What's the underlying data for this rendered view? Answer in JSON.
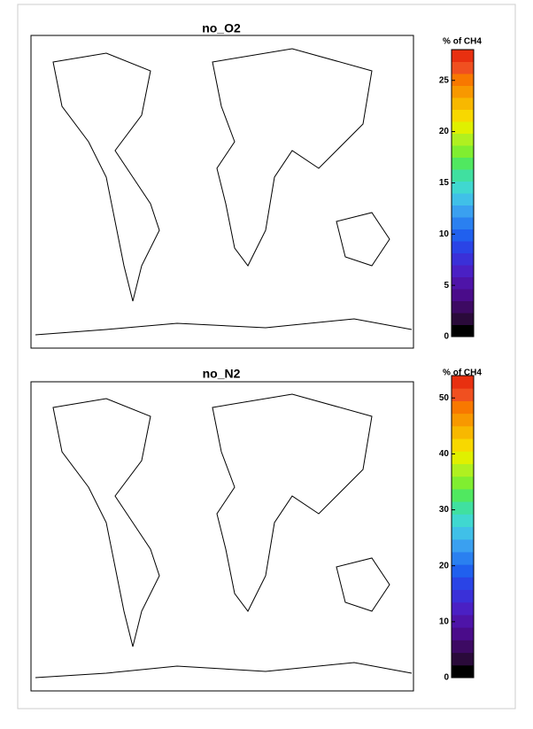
{
  "panels": [
    {
      "title": "no_O2",
      "colorbar_label": "% of CH4",
      "clim": [
        0,
        28
      ],
      "ticks": [
        0,
        5,
        10,
        15,
        20,
        25
      ]
    },
    {
      "title": "no_N2",
      "colorbar_label": "% of CH4",
      "clim": [
        0,
        54
      ],
      "ticks": [
        0,
        10,
        20,
        30,
        40,
        50
      ]
    }
  ],
  "colormap": [
    "#000000",
    "#2a0a3a",
    "#3d0a63",
    "#4a0c8a",
    "#4e14a8",
    "#4a20c4",
    "#3a30d8",
    "#2a44e6",
    "#2060ee",
    "#2a80f0",
    "#3aa0f0",
    "#40c0e8",
    "#40d8d0",
    "#40e0a0",
    "#50e860",
    "#80ee30",
    "#b0f020",
    "#e0f000",
    "#f8d800",
    "#f8b800",
    "#f89800",
    "#f87800",
    "#f05020",
    "#e83010"
  ]
}
